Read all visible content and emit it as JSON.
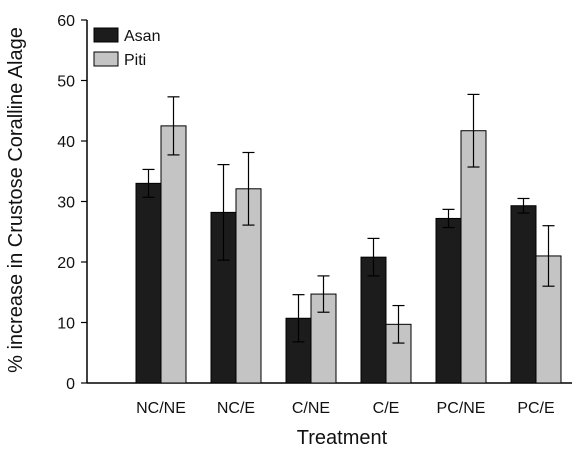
{
  "chart_data": {
    "type": "bar",
    "xlabel": "Treatment",
    "ylabel": "% increase in Crustose Coralline Alage",
    "ylim": [
      0,
      60
    ],
    "yticks": [
      0,
      10,
      20,
      30,
      40,
      50,
      60
    ],
    "categories": [
      "NC/NE",
      "NC/E",
      "C/NE",
      "C/E",
      "PC/NE",
      "PC/E"
    ],
    "series": [
      {
        "name": "Asan",
        "color": "#1c1c1c",
        "values": [
          33,
          28.2,
          10.7,
          20.8,
          27.2,
          29.3
        ],
        "errors": [
          2.3,
          7.9,
          3.9,
          3.1,
          1.5,
          1.2
        ]
      },
      {
        "name": "Piti",
        "color": "#c4c4c4",
        "values": [
          42.5,
          32.1,
          14.7,
          9.7,
          41.7,
          21
        ],
        "errors": [
          4.8,
          6,
          3,
          3.1,
          6,
          5
        ]
      }
    ],
    "legend_position": "top-left",
    "grid": false
  }
}
